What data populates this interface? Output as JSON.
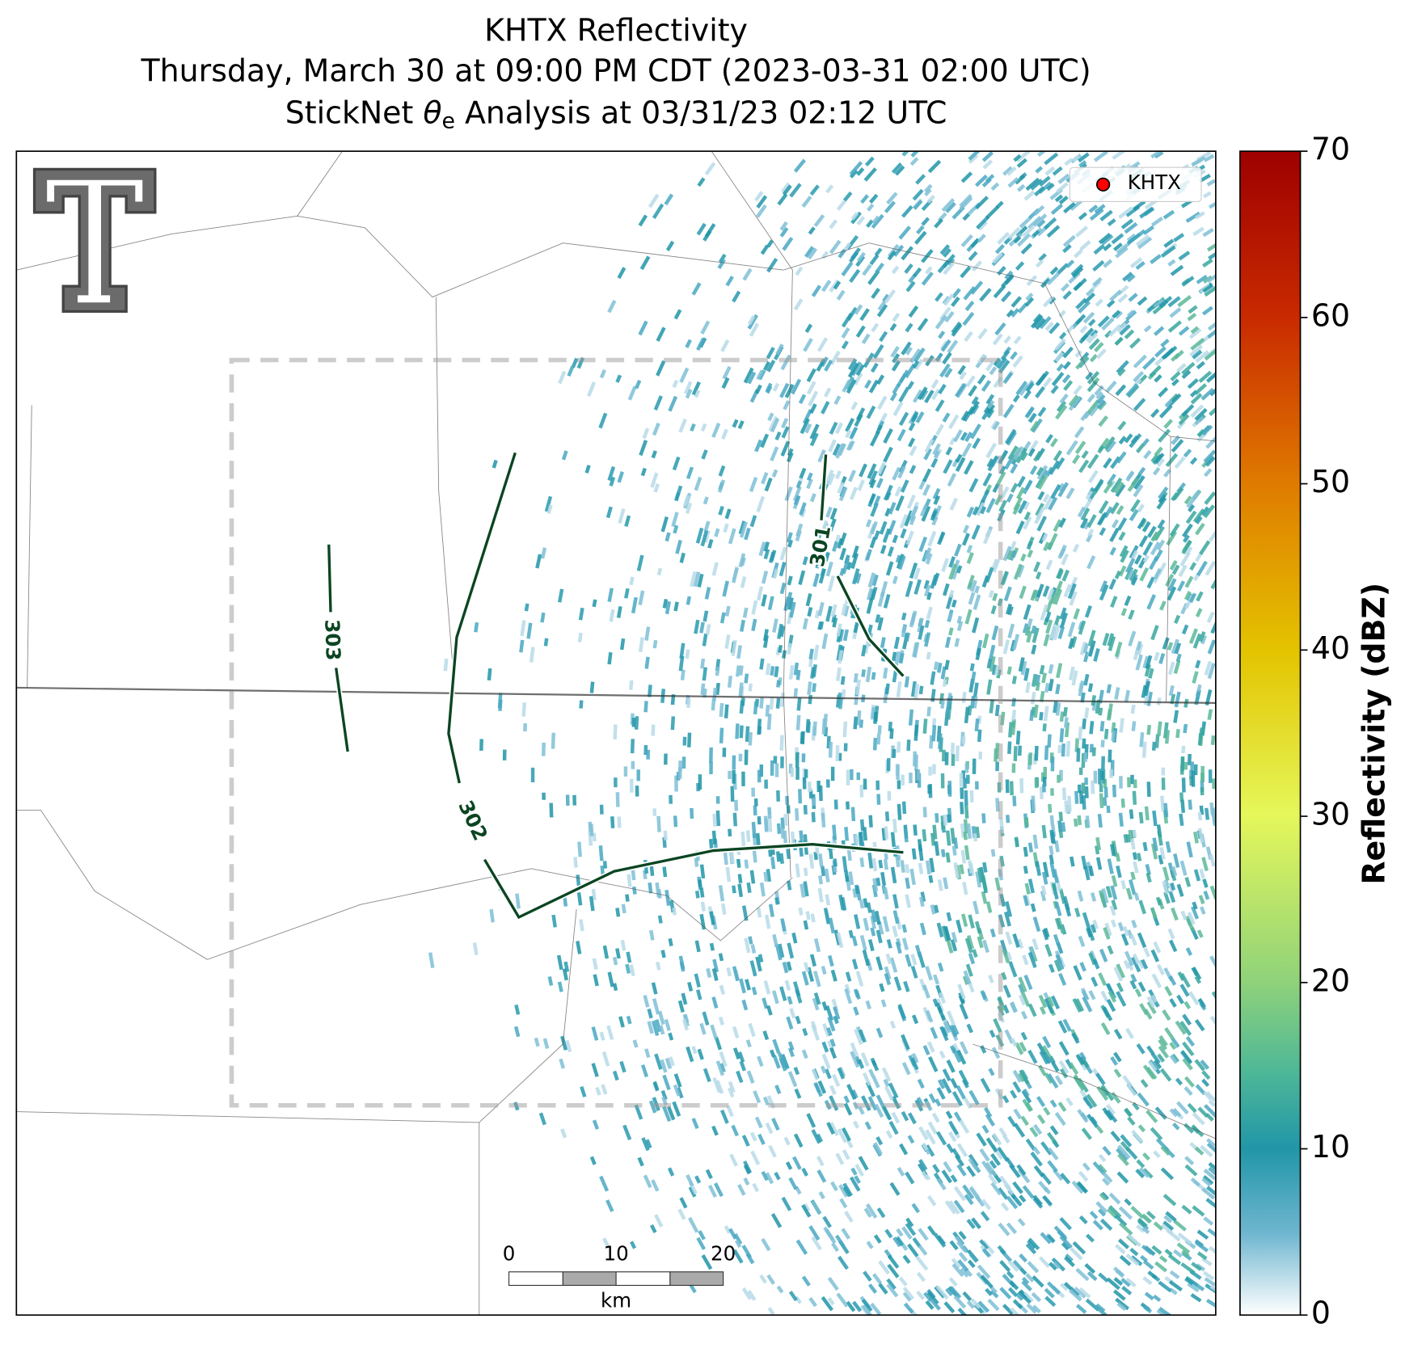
{
  "title": {
    "line1": "KHTX Reflectivity",
    "line2": "Thursday, March 30 at 09:00 PM CDT (2023-03-31 02:00 UTC)",
    "line3": [
      "StickNet ",
      "θ",
      "e",
      " Analysis at 03/31/23 02:12 UTC"
    ]
  },
  "legend": {
    "label": "KHTX",
    "color": "#ff0000"
  },
  "colorbar": {
    "label": "Reflectivity (dBZ)",
    "clim": [
      0,
      70
    ],
    "ticks": [
      0,
      10,
      20,
      30,
      40,
      50,
      60,
      70
    ]
  },
  "contours": [
    {
      "label": "301"
    },
    {
      "label": "302"
    },
    {
      "label": "303"
    }
  ],
  "scale_bar": {
    "ticks": [
      "0",
      "10",
      "20"
    ],
    "unit": "km"
  }
}
